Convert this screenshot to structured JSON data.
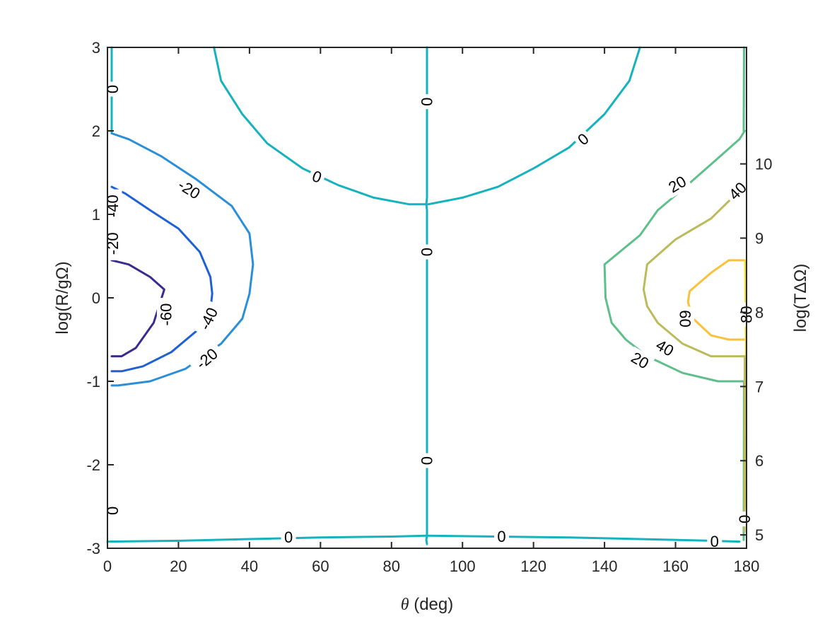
{
  "chart_data": {
    "type": "contour",
    "title": "",
    "xlabel_symbol": "θ",
    "xlabel_rest": " (deg)",
    "ylabel": "log(R/gΩ)",
    "y2label": "log(TΔΩ)",
    "xlim": [
      0,
      180
    ],
    "ylim": [
      -3,
      3
    ],
    "y2lim": [
      4.82,
      11.57
    ],
    "xticks": [
      0,
      20,
      40,
      60,
      80,
      100,
      120,
      140,
      160,
      180
    ],
    "yticks": [
      -3,
      -2,
      -1,
      0,
      1,
      2,
      3
    ],
    "y2ticks": [
      5,
      6,
      7,
      8,
      9,
      10
    ],
    "grid": false,
    "levels": [
      {
        "level": -60,
        "color": "#3a2c8c"
      },
      {
        "level": -40,
        "color": "#1f61d4"
      },
      {
        "level": -20,
        "color": "#2b8fd8"
      },
      {
        "level": 0,
        "color": "#16b2bd"
      },
      {
        "level": 20,
        "color": "#5fbf8a"
      },
      {
        "level": 40,
        "color": "#bcbb5c"
      },
      {
        "level": 60,
        "color": "#fcc13c"
      },
      {
        "level": 80,
        "color": "#f0e522"
      }
    ],
    "contours": [
      {
        "level": 0,
        "points": [
          [
            1.2,
            1.97
          ],
          [
            1.2,
            3
          ]
        ]
      },
      {
        "level": -20,
        "points": [
          [
            1.2,
            1.97
          ],
          [
            6,
            1.9
          ],
          [
            15,
            1.7
          ],
          [
            25,
            1.42
          ],
          [
            35,
            1.1
          ],
          [
            40,
            0.77
          ],
          [
            41,
            0.4
          ],
          [
            40,
            0.05
          ],
          [
            38,
            -0.25
          ],
          [
            32,
            -0.55
          ],
          [
            22,
            -0.85
          ],
          [
            12,
            -1.0
          ],
          [
            3,
            -1.05
          ],
          [
            1.2,
            -1.05
          ]
        ]
      },
      {
        "level": -40,
        "points": [
          [
            1.2,
            1.33
          ],
          [
            5,
            1.25
          ],
          [
            12,
            1.05
          ],
          [
            20,
            0.83
          ],
          [
            26,
            0.55
          ],
          [
            29,
            0.25
          ],
          [
            29.5,
            0.05
          ],
          [
            29,
            -0.15
          ],
          [
            25,
            -0.4
          ],
          [
            18,
            -0.65
          ],
          [
            10,
            -0.82
          ],
          [
            4,
            -0.88
          ],
          [
            1.2,
            -0.88
          ]
        ]
      },
      {
        "level": -60,
        "points": [
          [
            1.2,
            0.45
          ],
          [
            6,
            0.4
          ],
          [
            12,
            0.25
          ],
          [
            16,
            0.1
          ],
          [
            13,
            -0.3
          ],
          [
            8,
            -0.6
          ],
          [
            4,
            -0.7
          ],
          [
            1.2,
            -0.7
          ]
        ]
      },
      {
        "level": 0,
        "points": [
          [
            30,
            3
          ],
          [
            32,
            2.6
          ],
          [
            38,
            2.2
          ],
          [
            45,
            1.85
          ],
          [
            55,
            1.55
          ],
          [
            65,
            1.35
          ],
          [
            75,
            1.2
          ],
          [
            85,
            1.12
          ],
          [
            89.7,
            1.12
          ],
          [
            90.3,
            1.12
          ],
          [
            100,
            1.2
          ],
          [
            110,
            1.33
          ],
          [
            120,
            1.55
          ],
          [
            130,
            1.8
          ],
          [
            140,
            2.2
          ],
          [
            147,
            2.6
          ],
          [
            150,
            3
          ]
        ]
      },
      {
        "level": 0,
        "points": [
          [
            90,
            3
          ],
          [
            90,
            1.2
          ],
          [
            89.8,
            1.12
          ],
          [
            90,
            1.05
          ],
          [
            90,
            -2.85
          ],
          [
            89.8,
            -2.9
          ],
          [
            90,
            -2.95
          ]
        ]
      },
      {
        "level": 0,
        "points": [
          [
            0,
            -2.92
          ],
          [
            20,
            -2.91
          ],
          [
            40,
            -2.89
          ],
          [
            60,
            -2.87
          ],
          [
            80,
            -2.86
          ],
          [
            89.7,
            -2.85
          ],
          [
            90.3,
            -2.85
          ],
          [
            110,
            -2.86
          ],
          [
            130,
            -2.87
          ],
          [
            150,
            -2.89
          ],
          [
            170,
            -2.91
          ],
          [
            178,
            -2.92
          ]
        ]
      },
      {
        "level": 20,
        "points": [
          [
            179.5,
            2.0
          ],
          [
            178,
            1.9
          ],
          [
            170,
            1.6
          ],
          [
            162,
            1.3
          ],
          [
            155,
            1.05
          ],
          [
            150,
            0.75
          ],
          [
            140,
            0.4
          ],
          [
            140.3,
            0
          ],
          [
            142,
            -0.3
          ],
          [
            146,
            -0.5
          ],
          [
            152,
            -0.7
          ],
          [
            162,
            -0.9
          ],
          [
            172,
            -1.0
          ],
          [
            179.5,
            -1.0
          ]
        ]
      },
      {
        "level": 40,
        "points": [
          [
            179.5,
            1.33
          ],
          [
            176,
            1.2
          ],
          [
            170,
            0.95
          ],
          [
            160,
            0.7
          ],
          [
            152,
            0.4
          ],
          [
            151,
            0.1
          ],
          [
            152,
            -0.1
          ],
          [
            155,
            -0.3
          ],
          [
            162,
            -0.55
          ],
          [
            170,
            -0.7
          ],
          [
            179.5,
            -0.7
          ]
        ]
      },
      {
        "level": 60,
        "points": [
          [
            179.5,
            0.45
          ],
          [
            175,
            0.45
          ],
          [
            170,
            0.3
          ],
          [
            164,
            0.08
          ],
          [
            163.5,
            -0.05
          ],
          [
            165,
            -0.25
          ],
          [
            170,
            -0.45
          ],
          [
            175,
            -0.5
          ],
          [
            179.5,
            -0.5
          ]
        ]
      },
      {
        "level": 80,
        "points": [
          [
            179.6,
            0.45
          ],
          [
            179.8,
            -0.5
          ],
          [
            179.7,
            -2.5
          ]
        ]
      },
      {
        "level": 20,
        "points": [
          [
            179.2,
            -2.9
          ],
          [
            179.3,
            -1.0
          ]
        ]
      },
      {
        "level": 40,
        "points": [
          [
            179.4,
            -2.8
          ],
          [
            179.5,
            -0.7
          ]
        ]
      },
      {
        "level": 20,
        "points": [
          [
            179.2,
            2.0
          ],
          [
            179.3,
            3
          ]
        ]
      }
    ],
    "contour_labels": [
      {
        "text": "-60",
        "x": 16.5,
        "y": -0.2,
        "angle": -90
      },
      {
        "text": "-40",
        "x": 28.5,
        "y": -0.25,
        "angle": -65
      },
      {
        "text": "-20",
        "x": 28,
        "y": -0.73,
        "angle": -40
      },
      {
        "text": "-20",
        "x": 23,
        "y": 1.3,
        "angle": 32
      },
      {
        "text": "0",
        "x": 59,
        "y": 1.45,
        "angle": 20
      },
      {
        "text": "0",
        "x": 134,
        "y": 1.9,
        "angle": -40
      },
      {
        "text": "0",
        "x": 90,
        "y": 2.35,
        "angle": -90
      },
      {
        "text": "0",
        "x": 90,
        "y": 0.55,
        "angle": -90
      },
      {
        "text": "0",
        "x": 90,
        "y": -1.95,
        "angle": -90
      },
      {
        "text": "0",
        "x": 51,
        "y": -2.87,
        "angle": 0
      },
      {
        "text": "0",
        "x": 111,
        "y": -2.86,
        "angle": 0
      },
      {
        "text": "0",
        "x": 171,
        "y": -2.92,
        "angle": 0
      },
      {
        "text": "20",
        "x": 160.5,
        "y": 1.36,
        "angle": -30
      },
      {
        "text": "40",
        "x": 177.5,
        "y": 1.28,
        "angle": -45
      },
      {
        "text": "60",
        "x": 162.7,
        "y": -0.25,
        "angle": 90
      },
      {
        "text": "40",
        "x": 157,
        "y": -0.6,
        "angle": 30
      },
      {
        "text": "20",
        "x": 150,
        "y": -0.75,
        "angle": 30
      },
      {
        "text": "80",
        "x": 180,
        "y": -0.2,
        "angle": -90
      },
      {
        "text": "0",
        "x": 1.5,
        "y": 2.5,
        "angle": -90
      },
      {
        "text": "-40",
        "x": 1.5,
        "y": 1.1,
        "angle": -90
      },
      {
        "text": "-20",
        "x": 1.5,
        "y": 0.65,
        "angle": -90
      },
      {
        "text": "0",
        "x": 1.5,
        "y": -2.55,
        "angle": -90
      },
      {
        "text": "0",
        "x": 179.5,
        "y": -2.65,
        "angle": -90
      }
    ]
  }
}
